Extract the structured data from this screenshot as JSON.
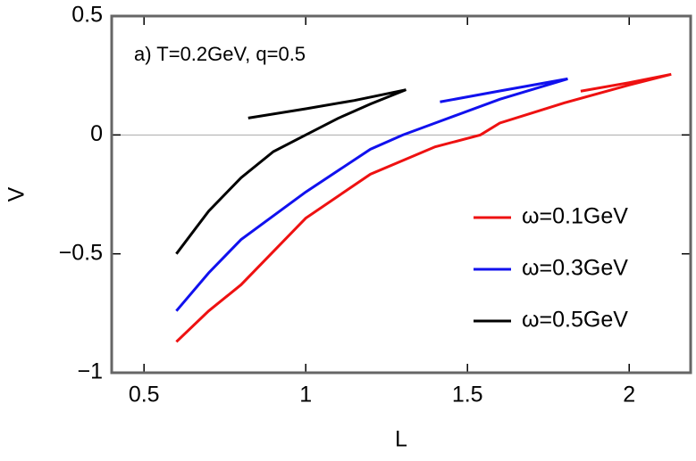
{
  "chart_data": {
    "type": "line",
    "annotation": "a) T=0.2GeV, q=0.5",
    "x_label": "L",
    "y_label": "V",
    "xlim": [
      0.4,
      2.19
    ],
    "ylim": [
      -1,
      0.5
    ],
    "xticks": [
      0.5,
      1,
      1.5,
      2
    ],
    "yticks": [
      0.5,
      0,
      {
        "value": -0.5,
        "label": "−0.5"
      },
      {
        "value": -1,
        "label": "−1"
      }
    ],
    "zero_line": true,
    "legend": "right",
    "series": [
      {
        "name": "ω=0.1GeV",
        "color": "#ee1111",
        "x": [
          0.6,
          0.7,
          0.8,
          1.0,
          1.2,
          1.4,
          1.54,
          1.6,
          1.8,
          2.0,
          2.13,
          2.0,
          1.85
        ],
        "values": [
          -0.87,
          -0.74,
          -0.63,
          -0.35,
          -0.165,
          -0.05,
          0,
          0.05,
          0.135,
          0.21,
          0.255,
          0.22,
          0.184
        ]
      },
      {
        "name": "ω=0.3GeV",
        "color": "#1111ee",
        "x": [
          0.6,
          0.7,
          0.8,
          1.0,
          1.2,
          1.3,
          1.4,
          1.6,
          1.81,
          1.6,
          1.415
        ],
        "values": [
          -0.74,
          -0.58,
          -0.44,
          -0.24,
          -0.06,
          0,
          0.05,
          0.15,
          0.236,
          0.185,
          0.139
        ]
      },
      {
        "name": "ω=0.5GeV",
        "color": "#000000",
        "x": [
          0.6,
          0.7,
          0.8,
          0.9,
          1.0,
          1.1,
          1.2,
          1.31,
          1.15,
          1.0,
          0.822
        ],
        "values": [
          -0.5,
          -0.32,
          -0.18,
          -0.07,
          0,
          0.07,
          0.13,
          0.19,
          0.145,
          0.11,
          0.071
        ]
      }
    ]
  }
}
